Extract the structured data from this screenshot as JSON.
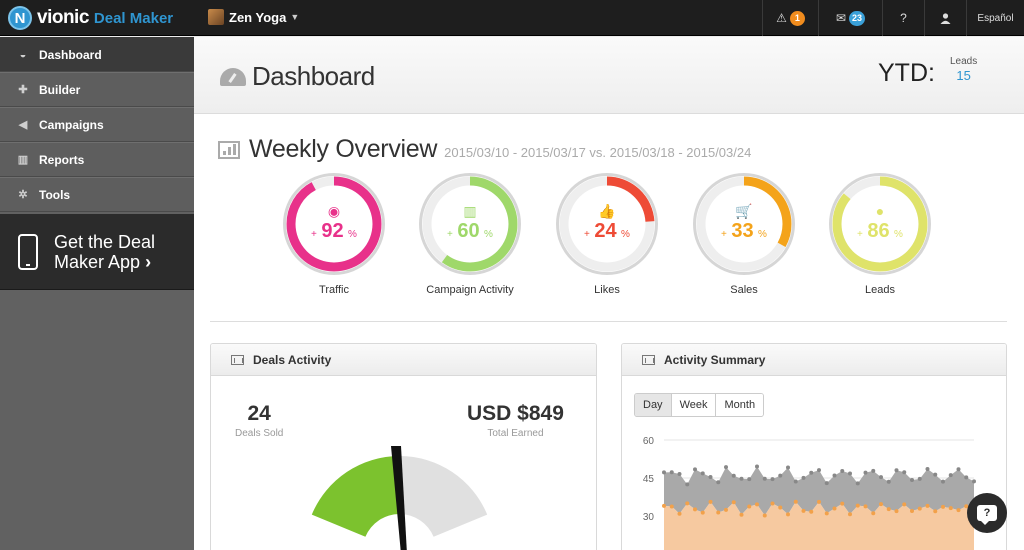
{
  "app": {
    "brand": "vionic",
    "brand_mark": "N",
    "product": "Deal Maker",
    "account_name": "Zen Yoga"
  },
  "topnav": {
    "alerts_count": "1",
    "messages_count": "23",
    "help_icon": "question-icon",
    "user_icon": "user-icon",
    "language": "Español"
  },
  "sidebar": {
    "items": [
      {
        "label": "Dashboard",
        "icon": "speedometer-icon",
        "active": true
      },
      {
        "label": "Builder",
        "icon": "plus-icon"
      },
      {
        "label": "Campaigns",
        "icon": "megaphone-icon"
      },
      {
        "label": "Reports",
        "icon": "bar-chart-icon"
      },
      {
        "label": "Tools",
        "icon": "gear-icon"
      }
    ],
    "app_promo": {
      "line1": "Get the Deal",
      "line2": "Maker App",
      "chevron": "›"
    }
  },
  "header": {
    "title": "Dashboard",
    "ytd_label": "YTD:",
    "ytd_stat_label": "Leads",
    "ytd_stat_value": "15"
  },
  "overview": {
    "title": "Weekly Overview",
    "range": "2015/03/10 - 2015/03/17 vs. 2015/03/18 - 2015/03/24",
    "gauges": [
      {
        "label": "Traffic",
        "value": "92",
        "fraction": 0.92,
        "color": "#e8318a",
        "icon": "globe-icon"
      },
      {
        "label": "Campaign Activity",
        "value": "60",
        "fraction": 0.6,
        "color": "#9fd86a",
        "icon": "bar-chart-icon"
      },
      {
        "label": "Likes",
        "value": "24",
        "fraction": 0.24,
        "color": "#ee4b36",
        "icon": "thumbs-up-icon"
      },
      {
        "label": "Sales",
        "value": "33",
        "fraction": 0.33,
        "color": "#f4a31a",
        "icon": "cart-icon"
      },
      {
        "label": "Leads",
        "value": "86",
        "fraction": 0.86,
        "color": "#dfe36a",
        "icon": "user-icon"
      }
    ],
    "plus": "+",
    "pct": "%"
  },
  "deals_activity": {
    "title": "Deals Activity",
    "sold_value": "24",
    "sold_label": "Deals Sold",
    "earned_value": "USD $849",
    "earned_label": "Total Earned",
    "gauge_colors": {
      "filled": "#7cc22e",
      "empty": "#e0e0e0"
    }
  },
  "activity_summary": {
    "title": "Activity Summary",
    "tabs": [
      {
        "label": "Day",
        "active": true
      },
      {
        "label": "Week"
      },
      {
        "label": "Month"
      }
    ],
    "chart_data": {
      "type": "area",
      "yticks": [
        "60",
        "45",
        "30"
      ],
      "ylim": [
        15,
        60
      ]
    }
  },
  "help_fab": {
    "label": "?"
  }
}
